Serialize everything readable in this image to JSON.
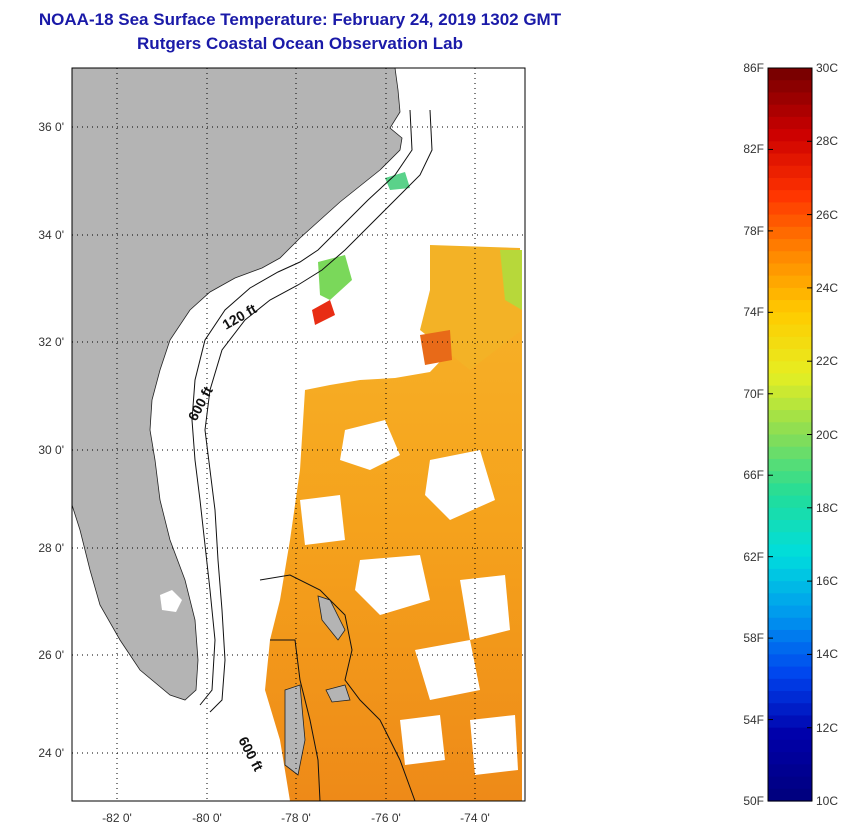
{
  "header": {
    "title": "NOAA-18 Sea Surface Temperature:  February 24, 2019 1302 GMT",
    "subtitle": "Rutgers Coastal Ocean Observation Lab"
  },
  "map": {
    "lat_labels": [
      "36 0'",
      "34 0'",
      "32 0'",
      "30 0'",
      "28 0'",
      "26 0'",
      "24 0'"
    ],
    "lon_labels": [
      "-82 0'",
      "-80 0'",
      "-78 0'",
      "-76 0'",
      "-74 0'"
    ],
    "contour_labels": [
      "120 ft",
      "600 ft",
      "600 ft"
    ]
  },
  "colorbar": {
    "fahrenheit": [
      "86F",
      "82F",
      "78F",
      "74F",
      "70F",
      "66F",
      "62F",
      "58F",
      "54F",
      "50F"
    ],
    "celsius": [
      "30C",
      "28C",
      "26C",
      "24C",
      "22C",
      "20C",
      "18C",
      "16C",
      "14C",
      "12C",
      "10C"
    ],
    "colors": [
      "#7a0000",
      "#cc0000",
      "#ff3300",
      "#ff8800",
      "#ffcc00",
      "#e6ee22",
      "#88dd55",
      "#22dd99",
      "#00dddd",
      "#0099ee",
      "#0044ee",
      "#0000aa",
      "#000080"
    ]
  },
  "colors": {
    "title": "#1a1aa8",
    "land": "#b4b4b4",
    "sst_warm": "#f5a21c",
    "sst_deep": "#ee8a18"
  }
}
